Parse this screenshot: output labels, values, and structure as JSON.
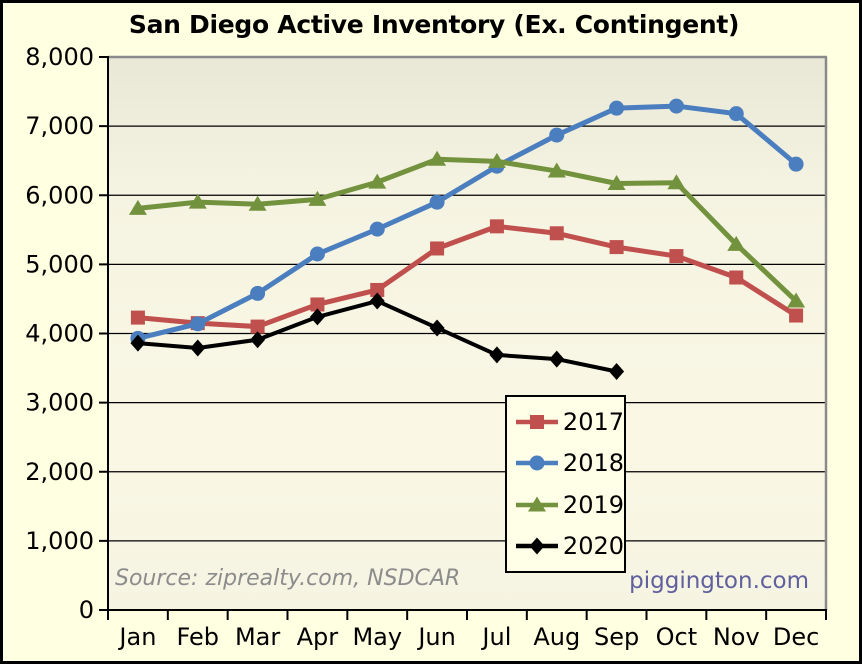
{
  "title": "San Diego Active Inventory (Ex. Contingent)",
  "source_note": "Source: ziprealty.com, NSDCAR",
  "watermark": "piggington.com",
  "colors": {
    "background": "#ffffe2",
    "plot_gradient_top": "#e9e7d6",
    "plot_gradient_mid": "#f5f3e1",
    "plot_gradient_bottom": "#faf8e5",
    "grid": "#000000",
    "axis": "#000000",
    "plot_shadow_border": "#8a8a8a",
    "source_text": "#8c8c8c",
    "watermark_text": "#60609f",
    "legend_background": "#fffee7"
  },
  "chart_data": {
    "type": "line",
    "title": "San Diego Active Inventory (Ex. Contingent)",
    "categories": [
      "Jan",
      "Feb",
      "Mar",
      "Apr",
      "May",
      "Jun",
      "Jul",
      "Aug",
      "Sep",
      "Oct",
      "Nov",
      "Dec"
    ],
    "series": [
      {
        "name": "2017",
        "color": "#c0504d",
        "marker": "square",
        "values": [
          4230,
          4150,
          4100,
          4420,
          4630,
          5230,
          5550,
          5450,
          5250,
          5120,
          4810,
          4260
        ]
      },
      {
        "name": "2018",
        "color": "#4a7ebf",
        "marker": "circle",
        "values": [
          3930,
          4140,
          4580,
          5150,
          5510,
          5900,
          6420,
          6870,
          7260,
          7290,
          7180,
          6450
        ]
      },
      {
        "name": "2019",
        "color": "#73923d",
        "marker": "triangle",
        "values": [
          5810,
          5900,
          5870,
          5940,
          6190,
          6520,
          6490,
          6350,
          6170,
          6180,
          5290,
          4470
        ]
      },
      {
        "name": "2020",
        "color": "#000000",
        "marker": "diamond",
        "values": [
          3860,
          3790,
          3910,
          4240,
          4470,
          4080,
          3690,
          3630,
          3450
        ]
      }
    ],
    "xlabel": "",
    "ylabel": "",
    "ylim": [
      0,
      8000
    ],
    "ytick_interval": 1000,
    "ytick_labels": [
      "0",
      "1,000",
      "2,000",
      "3,000",
      "4,000",
      "5,000",
      "6,000",
      "7,000",
      "8,000"
    ],
    "grid": true,
    "legend_position": "inside-bottom-center"
  }
}
